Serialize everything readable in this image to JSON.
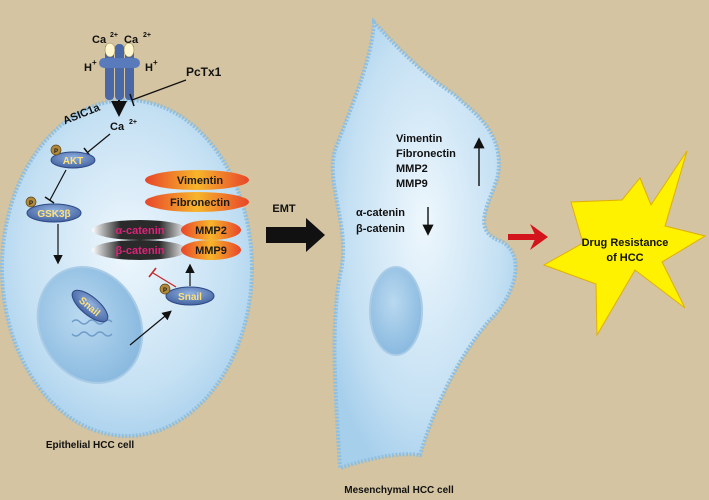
{
  "colors": {
    "background": "#d4c4a1",
    "cell_fill": "#c9e3f4",
    "cell_edge": "#8fbfe0",
    "node_fill": "#4f6fae",
    "node_text": "#ffe27a",
    "phospho": "#b08a3a",
    "orange_pill": "#f29c1f",
    "red_pill": "#d33b2c",
    "dark_pill": "#1c1c1c",
    "magenta_text": "#e0217a",
    "red_arrow": "#d4141c",
    "star_fill": "#fff200"
  },
  "labels": {
    "ca_left": "Ca",
    "ca_right": "Ca",
    "charge": "2+",
    "h_left": "H",
    "h_right": "H",
    "plus": "+",
    "pctx1": "PcTx1",
    "asic1a": "ASIC1a",
    "ca_inner": "Ca",
    "p": "P",
    "akt": "AKT",
    "gsk3b": "GSK3β",
    "snail_nucleus": "Snail",
    "snail_cyto": "Snail",
    "vimentin": "Vimentin",
    "fibronectin": "Fibronectin",
    "alpha_catenin": "α-catenin",
    "beta_catenin": "β-catenin",
    "mmp2": "MMP2",
    "mmp9": "MMP9",
    "epithelial_caption": "Epithelial HCC cell",
    "emt": "EMT",
    "mes_vimentin": "Vimentin",
    "mes_fibronectin": "Fibronectin",
    "mes_mmp2": "MMP2",
    "mes_mmp9": "MMP9",
    "mes_alpha": "α-catenin",
    "mes_beta": "β-catenin",
    "mesenchymal_caption": "Mesenchymal HCC cell",
    "drug_line1": "Drug Resistance",
    "drug_line2": "of HCC"
  }
}
